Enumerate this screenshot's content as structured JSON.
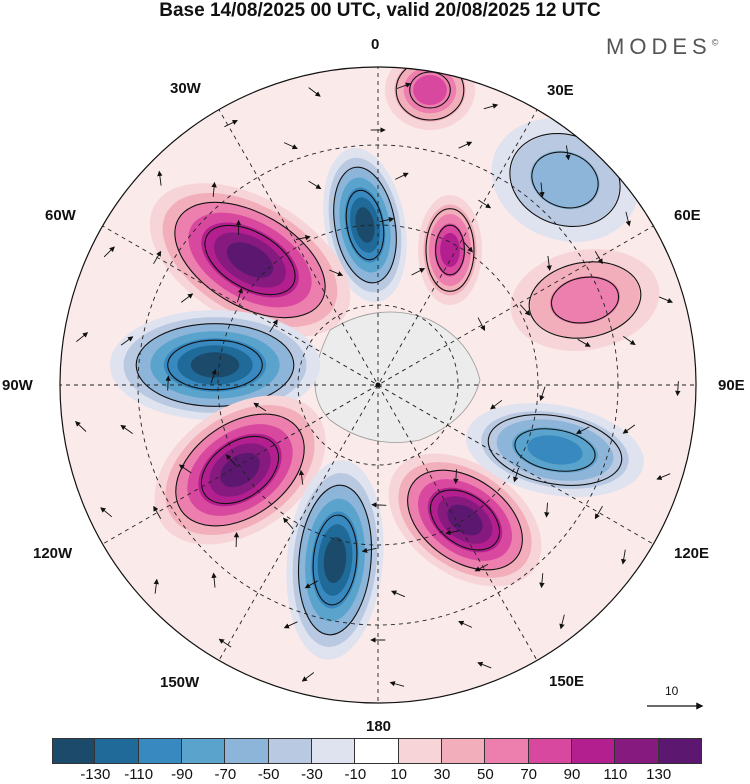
{
  "title": "Base 14/08/2025 00 UTC, valid 20/08/2025 12 UTC",
  "brand": "MODES",
  "brand_mark": "©",
  "longitude_labels": {
    "lon_0": "0",
    "lon_30e": "30E",
    "lon_60e": "60E",
    "lon_90e": "90E",
    "lon_120e": "120E",
    "lon_150e": "150E",
    "lon_180": "180",
    "lon_150w": "150W",
    "lon_120w": "120W",
    "lon_90w": "90W",
    "lon_60w": "60W",
    "lon_30w": "30W"
  },
  "vector_reference_label": "10",
  "colorbar": {
    "colors": [
      "#1b4a6b",
      "#1f6a98",
      "#3889bf",
      "#5aa3cd",
      "#8db5d9",
      "#b9c9e2",
      "#dfe2ef",
      "#ffffff",
      "#f7d4d7",
      "#f2aeba",
      "#ec7fad",
      "#d9489f",
      "#b41f8f",
      "#861a7f",
      "#5c1770"
    ],
    "tick_labels": [
      "-130",
      "-110",
      "-90",
      "-70",
      "-50",
      "-30",
      "-10",
      "10",
      "30",
      "50",
      "70",
      "90",
      "110",
      "130"
    ]
  },
  "anomaly_cells": [
    {
      "id": "negative-anomaly-north",
      "sign": "negative",
      "level": 130
    },
    {
      "id": "positive-anomaly-northwest",
      "sign": "positive",
      "level": 130
    },
    {
      "id": "negative-anomaly-west",
      "sign": "negative",
      "level": 130
    },
    {
      "id": "positive-anomaly-southwest",
      "sign": "positive",
      "level": 130
    },
    {
      "id": "negative-anomaly-south",
      "sign": "negative",
      "level": 130
    },
    {
      "id": "positive-anomaly-southeast",
      "sign": "positive",
      "level": 130
    },
    {
      "id": "negative-anomaly-east",
      "sign": "negative",
      "level": 90
    },
    {
      "id": "positive-anomaly-north-small",
      "sign": "positive",
      "level": 90
    },
    {
      "id": "positive-anomaly-north-top",
      "sign": "positive",
      "level": 70
    },
    {
      "id": "negative-anomaly-northeast",
      "sign": "negative",
      "level": 50
    },
    {
      "id": "positive-anomaly-east",
      "sign": "positive",
      "level": 50
    }
  ]
}
